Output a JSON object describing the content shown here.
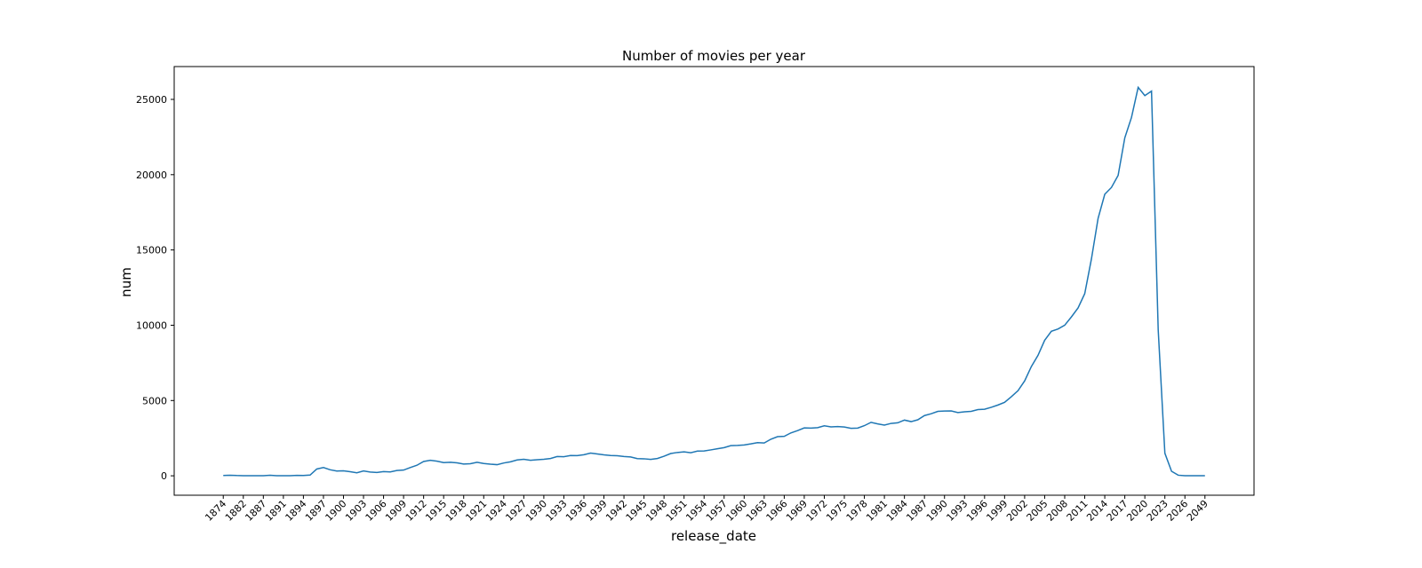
{
  "chart_data": {
    "type": "line",
    "title": "Number of movies per year",
    "x_label": "release_date",
    "y_label": "num",
    "categories": [
      "1874",
      null,
      null,
      "1882",
      null,
      null,
      "1887",
      null,
      null,
      "1891",
      null,
      null,
      "1894",
      null,
      null,
      "1897",
      null,
      null,
      "1900",
      null,
      null,
      "1903",
      null,
      null,
      "1906",
      null,
      null,
      "1909",
      null,
      null,
      "1912",
      null,
      null,
      "1915",
      null,
      null,
      "1918",
      null,
      null,
      "1921",
      null,
      null,
      "1924",
      null,
      null,
      "1927",
      null,
      null,
      "1930",
      null,
      null,
      "1933",
      null,
      null,
      "1936",
      null,
      null,
      "1939",
      null,
      null,
      "1942",
      null,
      null,
      "1945",
      null,
      null,
      "1948",
      null,
      null,
      "1951",
      null,
      null,
      "1954",
      null,
      null,
      "1957",
      null,
      null,
      "1960",
      null,
      null,
      "1963",
      null,
      null,
      "1966",
      null,
      null,
      "1969",
      null,
      null,
      "1972",
      null,
      null,
      "1975",
      null,
      null,
      "1978",
      null,
      null,
      "1981",
      null,
      null,
      "1984",
      null,
      null,
      "1987",
      null,
      null,
      "1990",
      null,
      null,
      "1993",
      null,
      null,
      "1996",
      null,
      null,
      "1999",
      null,
      null,
      "2002",
      null,
      null,
      "2005",
      null,
      null,
      "2008",
      null,
      null,
      "2011",
      null,
      null,
      "2014",
      null,
      null,
      "2017",
      null,
      null,
      "2020",
      null,
      null,
      "2023",
      null,
      null,
      "2026",
      null,
      null,
      "2049"
    ],
    "values": [
      20,
      40,
      20,
      10,
      10,
      10,
      10,
      40,
      10,
      10,
      10,
      30,
      20,
      50,
      450,
      550,
      400,
      320,
      330,
      270,
      200,
      320,
      250,
      220,
      280,
      260,
      350,
      380,
      550,
      700,
      950,
      1030,
      970,
      880,
      900,
      860,
      780,
      800,
      900,
      820,
      770,
      740,
      850,
      930,
      1050,
      1100,
      1030,
      1070,
      1100,
      1150,
      1280,
      1270,
      1350,
      1340,
      1400,
      1510,
      1450,
      1390,
      1350,
      1330,
      1280,
      1250,
      1140,
      1130,
      1090,
      1150,
      1300,
      1480,
      1550,
      1590,
      1530,
      1640,
      1650,
      1720,
      1800,
      1870,
      2000,
      2020,
      2050,
      2120,
      2200,
      2180,
      2430,
      2600,
      2620,
      2850,
      3000,
      3180,
      3170,
      3200,
      3320,
      3250,
      3270,
      3240,
      3150,
      3170,
      3330,
      3550,
      3450,
      3370,
      3480,
      3520,
      3700,
      3600,
      3720,
      4000,
      4120,
      4280,
      4300,
      4310,
      4200,
      4250,
      4280,
      4400,
      4420,
      4550,
      4700,
      4880,
      5250,
      5650,
      6300,
      7250,
      8000,
      9000,
      9600,
      9750,
      10000,
      10550,
      11150,
      12100,
      14400,
      17100,
      18700,
      19150,
      19950,
      22450,
      23800,
      25800,
      25250,
      25550,
      9700,
      1500,
      300,
      40,
      10,
      5,
      5,
      5
    ],
    "color": "#1f77b4",
    "ylim": [
      -1290,
      27180
    ],
    "yticks": [
      0,
      5000,
      10000,
      15000,
      20000,
      25000
    ],
    "grid": false
  }
}
